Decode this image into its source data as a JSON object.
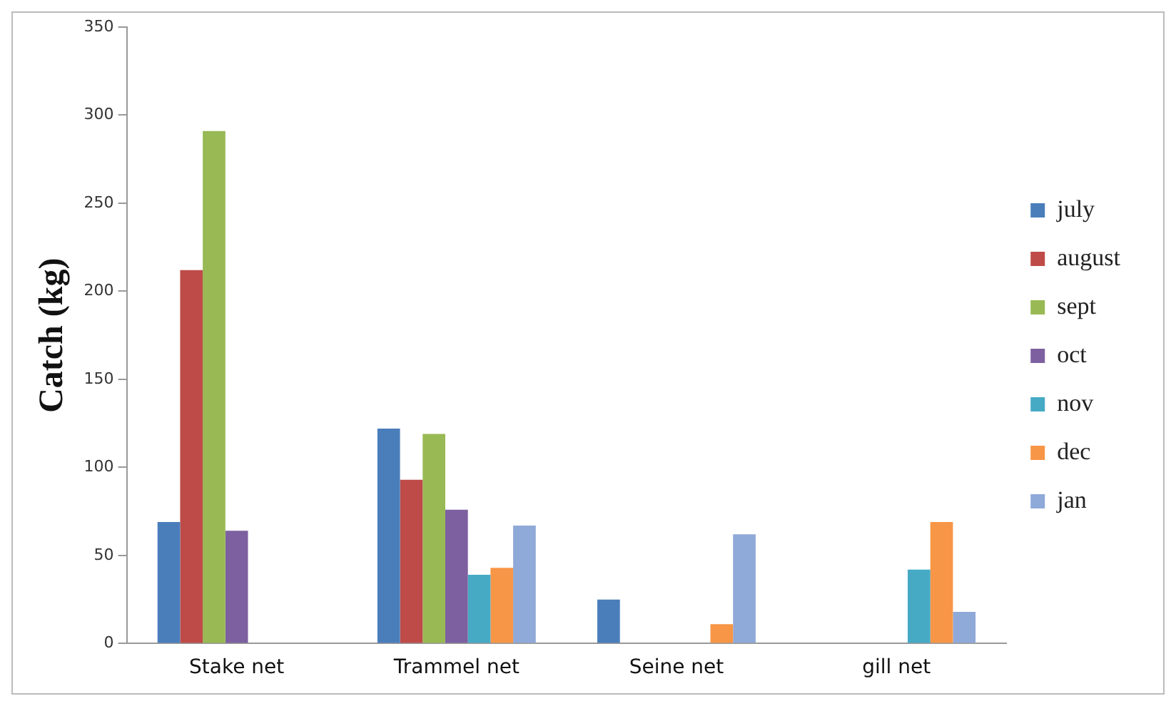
{
  "chart_data": {
    "type": "bar",
    "ylabel": "Catch (kg)",
    "categories": [
      "Stake net",
      "Trammel net",
      "Seine net",
      "gill net"
    ],
    "series": [
      {
        "name": "july",
        "color": "#4a7ebb",
        "values": [
          69,
          122,
          25,
          null
        ]
      },
      {
        "name": "august",
        "color": "#be4b48",
        "values": [
          212,
          93,
          null,
          null
        ]
      },
      {
        "name": "sept",
        "color": "#98b954",
        "values": [
          291,
          119,
          null,
          null
        ]
      },
      {
        "name": "oct",
        "color": "#7d60a0",
        "values": [
          64,
          76,
          null,
          null
        ]
      },
      {
        "name": "nov",
        "color": "#46aac5",
        "values": [
          null,
          39,
          null,
          42
        ]
      },
      {
        "name": "dec",
        "color": "#f79646",
        "values": [
          null,
          43,
          11,
          69
        ]
      },
      {
        "name": "jan",
        "color": "#8fa9d8",
        "values": [
          null,
          67,
          62,
          18
        ]
      }
    ],
    "ylim": [
      0,
      350
    ],
    "yticks": [
      0,
      50,
      100,
      150,
      200,
      250,
      300,
      350
    ],
    "grid": false,
    "legend": "right"
  }
}
